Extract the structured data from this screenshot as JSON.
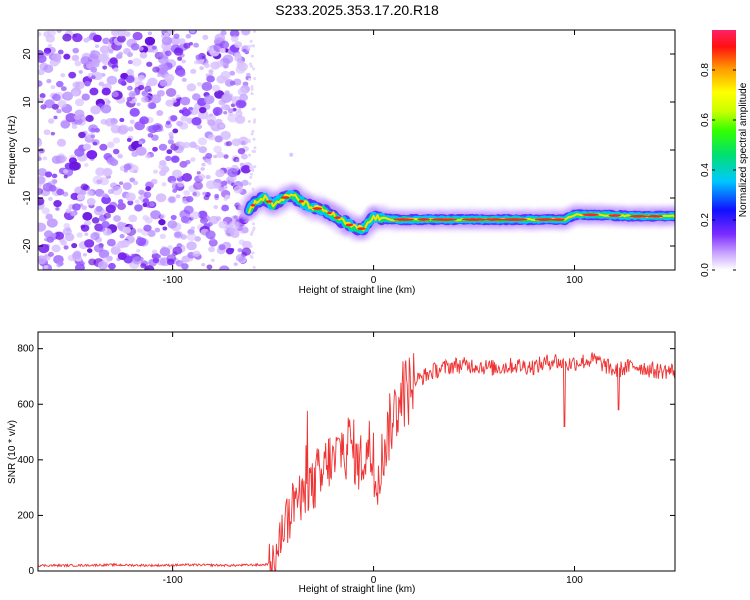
{
  "title": "S233.2025.353.17.20.R18",
  "chart_data": [
    {
      "type": "heatmap",
      "name": "spectrogram",
      "xlabel": "Height of straight line (km)",
      "ylabel": "Frequency (Hz)",
      "xlim": [
        -167,
        150
      ],
      "ylim": [
        -25,
        25
      ],
      "x_ticks": [
        -100,
        0,
        100
      ],
      "y_ticks": [
        20,
        10,
        0,
        -10,
        -20
      ],
      "noise_region_x": [
        -167,
        -62
      ],
      "signal_ridge": [
        {
          "x": -62,
          "y": -12.5
        },
        {
          "x": -58,
          "y": -10.5
        },
        {
          "x": -54,
          "y": -10
        },
        {
          "x": -50,
          "y": -11.5
        },
        {
          "x": -45,
          "y": -10
        },
        {
          "x": -40,
          "y": -9.5
        },
        {
          "x": -35,
          "y": -11
        },
        {
          "x": -30,
          "y": -12
        },
        {
          "x": -25,
          "y": -12.5
        },
        {
          "x": -20,
          "y": -13.5
        },
        {
          "x": -15,
          "y": -15
        },
        {
          "x": -10,
          "y": -16
        },
        {
          "x": -5,
          "y": -16.5
        },
        {
          "x": 0,
          "y": -14
        },
        {
          "x": 10,
          "y": -14.5
        },
        {
          "x": 50,
          "y": -14.5
        },
        {
          "x": 95,
          "y": -14.5
        },
        {
          "x": 100,
          "y": -13.5
        },
        {
          "x": 110,
          "y": -13.5
        },
        {
          "x": 130,
          "y": -13.8
        },
        {
          "x": 150,
          "y": -13.8
        }
      ],
      "colorbar": {
        "label": "Normalized spectral amplitude",
        "range": [
          0,
          0.96
        ],
        "ticks": [
          "0.0",
          "0.2",
          "0.4",
          "0.6",
          "0.8"
        ],
        "tick_values": [
          0,
          0.2,
          0.4,
          0.6,
          0.8
        ]
      }
    },
    {
      "type": "line",
      "name": "snr",
      "xlabel": "Height of straight line (km)",
      "ylabel": "SNR (10 * v/v)",
      "xlim": [
        -167,
        150
      ],
      "ylim": [
        0,
        860
      ],
      "x_ticks": [
        -100,
        0,
        100
      ],
      "y_ticks": [
        0,
        200,
        400,
        600,
        800
      ],
      "color": "#ee3333",
      "series": [
        {
          "name": "SNR",
          "x": [
            -167,
            -150,
            -130,
            -110,
            -90,
            -70,
            -60,
            -55,
            -50,
            -48,
            -46,
            -44,
            -42,
            -40,
            -38,
            -36,
            -34,
            -32,
            -30,
            -28,
            -26,
            -24,
            -22,
            -20,
            -18,
            -16,
            -14,
            -12,
            -10,
            -8,
            -6,
            -4,
            -2,
            0,
            2,
            4,
            6,
            8,
            10,
            12,
            14,
            16,
            18,
            20,
            25,
            30,
            40,
            50,
            60,
            70,
            80,
            90,
            95,
            100,
            110,
            120,
            130,
            140,
            150
          ],
          "y": [
            20,
            20,
            22,
            20,
            22,
            20,
            22,
            22,
            30,
            60,
            120,
            200,
            180,
            250,
            280,
            230,
            300,
            320,
            290,
            350,
            320,
            380,
            400,
            380,
            420,
            450,
            430,
            470,
            440,
            380,
            400,
            420,
            450,
            350,
            320,
            400,
            460,
            520,
            560,
            600,
            650,
            640,
            660,
            680,
            700,
            720,
            740,
            740,
            730,
            740,
            735,
            760,
            740,
            750,
            760,
            720,
            740,
            720,
            720
          ]
        }
      ]
    }
  ]
}
